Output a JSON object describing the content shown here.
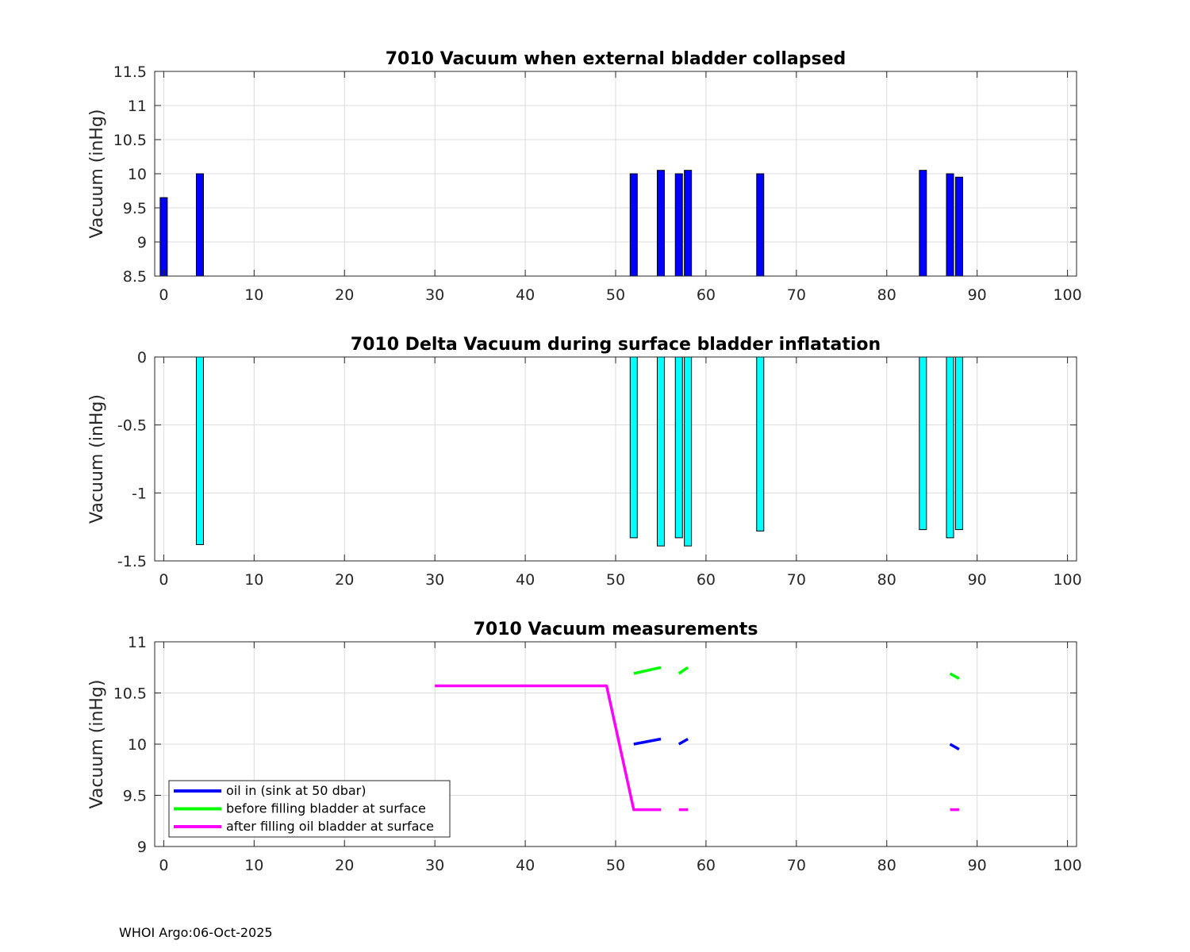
{
  "footer": {
    "text": "WHOI Argo:06-Oct-2025"
  },
  "chart_data": [
    {
      "type": "bar",
      "title": "7010 Vacuum when external bladder collapsed",
      "ylabel": "Vacuum (inHg)",
      "xlim": [
        -1,
        101
      ],
      "ylim": [
        8.5,
        11.5
      ],
      "xticks": [
        0,
        10,
        20,
        30,
        40,
        50,
        60,
        70,
        80,
        90,
        100
      ],
      "yticks": [
        8.5,
        9,
        9.5,
        10,
        10.5,
        11,
        11.5
      ],
      "ytick_labels": [
        "8.5",
        "9",
        "9.5",
        "10",
        "10.5",
        "11",
        "11.5"
      ],
      "grid": true,
      "bar_base": 8.5,
      "bar_color": "#0000ff",
      "x": [
        0,
        4,
        52,
        55,
        57,
        58,
        66,
        84,
        87,
        88
      ],
      "values": [
        9.65,
        10.0,
        10.0,
        10.05,
        10.0,
        10.05,
        10.0,
        10.05,
        10.0,
        9.95
      ]
    },
    {
      "type": "bar",
      "title": "7010 Delta Vacuum during surface bladder inflatation",
      "ylabel": "Vacuum (inHg)",
      "xlim": [
        -1,
        101
      ],
      "ylim": [
        -1.5,
        0
      ],
      "xticks": [
        0,
        10,
        20,
        30,
        40,
        50,
        60,
        70,
        80,
        90,
        100
      ],
      "yticks": [
        -1.5,
        -1,
        -0.5,
        0
      ],
      "ytick_labels": [
        "-1.5",
        "-1",
        "-0.5",
        "0"
      ],
      "grid": true,
      "bar_base": 0,
      "bar_color": "#00ffff",
      "x": [
        4,
        52,
        55,
        57,
        58,
        66,
        84,
        87,
        88
      ],
      "values": [
        -1.38,
        -1.33,
        -1.39,
        -1.33,
        -1.39,
        -1.28,
        -1.27,
        -1.33,
        -1.27
      ]
    },
    {
      "type": "line",
      "title": "7010 Vacuum measurements",
      "ylabel": "Vacuum (inHg)",
      "xlim": [
        -1,
        101
      ],
      "ylim": [
        9,
        11
      ],
      "xticks": [
        0,
        10,
        20,
        30,
        40,
        50,
        60,
        70,
        80,
        90,
        100
      ],
      "yticks": [
        9,
        9.5,
        10,
        10.5,
        11
      ],
      "ytick_labels": [
        "9",
        "9.5",
        "10",
        "10.5",
        "11"
      ],
      "grid": true,
      "legend": "bottom-left",
      "series": [
        {
          "name": "oil in (sink at 50 dbar)",
          "color": "#0000ff",
          "segments": [
            [
              [
                52,
                10.0
              ],
              [
                55,
                10.05
              ]
            ],
            [
              [
                57,
                10.0
              ],
              [
                58,
                10.05
              ]
            ],
            [
              [
                87,
                10.0
              ],
              [
                88,
                9.95
              ]
            ]
          ]
        },
        {
          "name": "before filling bladder at surface",
          "color": "#00ff00",
          "segments": [
            [
              [
                52,
                10.69
              ],
              [
                55,
                10.75
              ]
            ],
            [
              [
                57,
                10.69
              ],
              [
                58,
                10.75
              ]
            ],
            [
              [
                87,
                10.69
              ],
              [
                88,
                10.64
              ]
            ]
          ]
        },
        {
          "name": "after filling oil bladder at surface",
          "color": "#ff00ff",
          "segments": [
            [
              [
                30,
                10.57
              ],
              [
                49,
                10.57
              ],
              [
                52,
                9.36
              ],
              [
                55,
                9.36
              ]
            ],
            [
              [
                57,
                9.36
              ],
              [
                58,
                9.36
              ]
            ],
            [
              [
                87,
                9.36
              ],
              [
                88,
                9.36
              ]
            ]
          ]
        }
      ]
    }
  ]
}
